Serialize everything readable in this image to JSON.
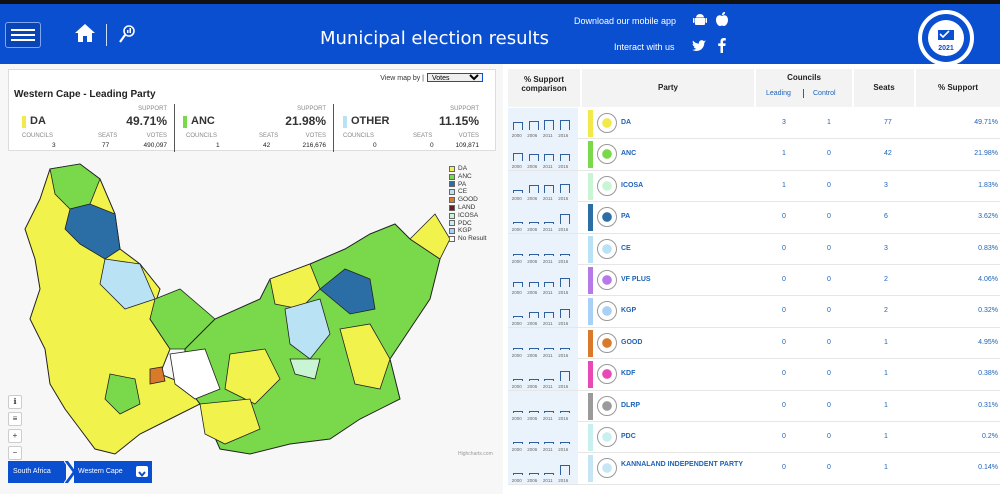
{
  "header": {
    "title": "Municipal election results",
    "download_text": "Download our mobile app",
    "interact_text": "Interact with us",
    "logo_year": "2021"
  },
  "summary": {
    "view_map_label": "View map by |",
    "view_map_selected": "Votes",
    "title": "Western Cape - Leading Party",
    "support_label": "SUPPORT",
    "councils_label": "COUNCILS",
    "seats_label": "SEATS",
    "votes_label": "VOTES",
    "parties": [
      {
        "name": "DA",
        "color": "#f2f24d",
        "support": "49.71%",
        "councils": "3",
        "seats": "77",
        "votes": "490,097"
      },
      {
        "name": "ANC",
        "color": "#7ad94a",
        "support": "21.98%",
        "councils": "1",
        "seats": "42",
        "votes": "216,676"
      },
      {
        "name": "OTHER",
        "color": "#b9e3f5",
        "support": "11.15%",
        "councils": "0",
        "seats": "0",
        "votes": "109,871"
      }
    ]
  },
  "legend": [
    {
      "name": "DA",
      "color": "#f2f24d"
    },
    {
      "name": "ANC",
      "color": "#7ad94a"
    },
    {
      "name": "PA",
      "color": "#2b6ea5"
    },
    {
      "name": "CE",
      "color": "#b9e3f5"
    },
    {
      "name": "GOOD",
      "color": "#d97a2b"
    },
    {
      "name": "LAND",
      "color": "#6b1d1d"
    },
    {
      "name": "ICOSA",
      "color": "#c9f5d5"
    },
    {
      "name": "PDC",
      "color": "#c7f0ee"
    },
    {
      "name": "KGP",
      "color": "#a9d0f5"
    },
    {
      "name": "No Result",
      "color": "#ffffff"
    }
  ],
  "map_credit": "Highcharts.com",
  "breadcrumb": {
    "root": "South Africa",
    "current": "Western Cape"
  },
  "table": {
    "headers": {
      "comparison": "% Support comparison",
      "party": "Party",
      "councils": "Councils",
      "leading": "Leading",
      "control": "Control",
      "seats": "Seats",
      "support": "% Support"
    },
    "years": [
      "2000",
      "2006",
      "2011",
      "2016"
    ],
    "rows": [
      {
        "party": "DA",
        "color": "#f2e94a",
        "leading": "3",
        "control": "1",
        "seats": "77",
        "support": "49.71%",
        "spark": [
          0.8,
          0.9,
          1.0,
          1.0
        ]
      },
      {
        "party": "ANC",
        "color": "#7ad94a",
        "leading": "1",
        "control": "0",
        "seats": "42",
        "support": "21.98%",
        "spark": [
          0.8,
          0.7,
          0.7,
          0.7
        ]
      },
      {
        "party": "ICOSA",
        "color": "#c9f5d5",
        "leading": "1",
        "control": "0",
        "seats": "3",
        "support": "1.83%",
        "spark": [
          0.3,
          0.8,
          0.8,
          0.9
        ]
      },
      {
        "party": "PA",
        "color": "#2b6ea5",
        "leading": "0",
        "control": "0",
        "seats": "6",
        "support": "3.62%",
        "spark": [
          0,
          0,
          0,
          1.0
        ]
      },
      {
        "party": "CE",
        "color": "#b9e3f5",
        "leading": "0",
        "control": "0",
        "seats": "3",
        "support": "0.83%",
        "spark": [
          0,
          0,
          0,
          0
        ]
      },
      {
        "party": "VF PLUS",
        "color": "#b57ae8",
        "leading": "0",
        "control": "0",
        "seats": "2",
        "support": "4.06%",
        "spark": [
          0.5,
          0.5,
          0.5,
          0.9
        ]
      },
      {
        "party": "KGP",
        "color": "#a9d0f5",
        "leading": "0",
        "control": "0",
        "seats": "2",
        "support": "0.32%",
        "spark": [
          0,
          0.6,
          0.6,
          0.9
        ]
      },
      {
        "party": "GOOD",
        "color": "#d97a2b",
        "leading": "0",
        "control": "0",
        "seats": "1",
        "support": "4.95%",
        "spark": [
          0,
          0,
          0,
          0
        ]
      },
      {
        "party": "KDF",
        "color": "#e84ab5",
        "leading": "0",
        "control": "0",
        "seats": "1",
        "support": "0.38%",
        "spark": [
          0,
          0,
          0,
          1.0
        ]
      },
      {
        "party": "DLRP",
        "color": "#9a9a9a",
        "leading": "0",
        "control": "0",
        "seats": "1",
        "support": "0.31%",
        "spark": [
          0,
          0,
          0,
          0
        ]
      },
      {
        "party": "PDC",
        "color": "#c7f0ee",
        "leading": "0",
        "control": "0",
        "seats": "1",
        "support": "0.2%",
        "spark": [
          0,
          0,
          0,
          0
        ]
      },
      {
        "party": "KANNALAND INDEPENDENT PARTY",
        "color": "#c7e6f5",
        "leading": "0",
        "control": "0",
        "seats": "1",
        "support": "0.14%",
        "spark": [
          0,
          0,
          0,
          1.0
        ]
      }
    ]
  }
}
